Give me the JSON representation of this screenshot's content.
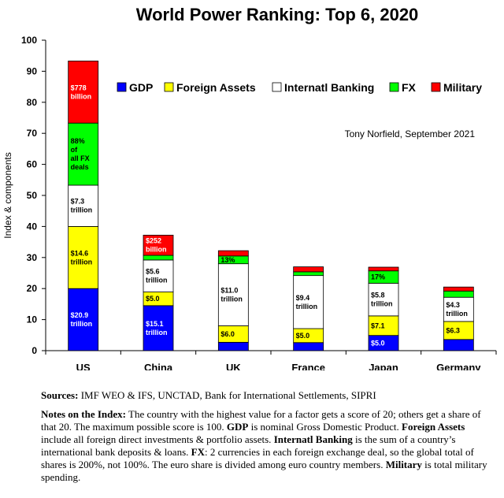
{
  "chart_data": {
    "type": "bar",
    "stacked": true,
    "title": "World Power Ranking: Top 6, 2020",
    "xlabel": "",
    "ylabel": "Index & components",
    "ylim": [
      0,
      100
    ],
    "yticks": [
      "0",
      "10",
      "20",
      "30",
      "40",
      "50",
      "60",
      "70",
      "80",
      "90",
      "100"
    ],
    "grid": false,
    "legend_position": "top-right",
    "annotation": "Tony Norfield, September 2021",
    "categories": [
      "US",
      "China",
      "UK",
      "France",
      "Japan",
      "Germany"
    ],
    "series": [
      {
        "name": "GDP",
        "color": "#0000ff",
        "values": [
          20.0,
          14.5,
          2.7,
          2.6,
          4.9,
          3.6
        ]
      },
      {
        "name": "Foreign Assets",
        "color": "#ffff00",
        "values": [
          20.0,
          4.4,
          5.3,
          4.5,
          6.3,
          5.8
        ]
      },
      {
        "name": "Internatl Banking",
        "color": "#ffffff",
        "values": [
          13.3,
          10.3,
          20.0,
          17.1,
          10.5,
          7.8
        ]
      },
      {
        "name": "FX",
        "color": "#00ff00",
        "values": [
          20.0,
          1.5,
          2.5,
          1.2,
          4.0,
          2.0
        ]
      },
      {
        "name": "Military",
        "color": "#ff0000",
        "values": [
          20.0,
          6.5,
          1.7,
          1.6,
          1.2,
          1.3
        ]
      }
    ],
    "data_labels": [
      {
        "cat": 0,
        "series": 0,
        "lines": [
          "$20.9",
          "trillion"
        ],
        "color": "#ffffff"
      },
      {
        "cat": 0,
        "series": 1,
        "lines": [
          "$14.6",
          "trillion"
        ],
        "color": "#000000"
      },
      {
        "cat": 0,
        "series": 2,
        "lines": [
          "$7.3",
          "trillion"
        ],
        "color": "#000000"
      },
      {
        "cat": 0,
        "series": 3,
        "lines": [
          "88%",
          "of",
          "all FX",
          "deals"
        ],
        "color": "#000000"
      },
      {
        "cat": 0,
        "series": 4,
        "lines": [
          "$778",
          "billion"
        ],
        "color": "#ffffff"
      },
      {
        "cat": 1,
        "series": 0,
        "lines": [
          "$15.1",
          "trillion"
        ],
        "color": "#ffffff"
      },
      {
        "cat": 1,
        "series": 1,
        "lines": [
          "$5.0"
        ],
        "color": "#000000"
      },
      {
        "cat": 1,
        "series": 2,
        "lines": [
          "$5.6",
          "trillion"
        ],
        "color": "#000000"
      },
      {
        "cat": 1,
        "series": 4,
        "lines": [
          "$252",
          "billion"
        ],
        "color": "#ffffff"
      },
      {
        "cat": 2,
        "series": 1,
        "lines": [
          "$6.0"
        ],
        "color": "#000000"
      },
      {
        "cat": 2,
        "series": 2,
        "lines": [
          "$11.0",
          "trillion"
        ],
        "color": "#000000"
      },
      {
        "cat": 2,
        "series": 3,
        "lines": [
          "13%"
        ],
        "color": "#000000"
      },
      {
        "cat": 3,
        "series": 1,
        "lines": [
          "$5.0"
        ],
        "color": "#000000"
      },
      {
        "cat": 3,
        "series": 2,
        "lines": [
          "$9.4",
          "trillion"
        ],
        "color": "#000000"
      },
      {
        "cat": 4,
        "series": 0,
        "lines": [
          "$5.0"
        ],
        "color": "#ffffff"
      },
      {
        "cat": 4,
        "series": 1,
        "lines": [
          "$7.1"
        ],
        "color": "#000000"
      },
      {
        "cat": 4,
        "series": 2,
        "lines": [
          "$5.8",
          "trillion"
        ],
        "color": "#000000"
      },
      {
        "cat": 4,
        "series": 3,
        "lines": [
          "17%"
        ],
        "color": "#000000"
      },
      {
        "cat": 5,
        "series": 1,
        "lines": [
          "$6.3"
        ],
        "color": "#000000"
      },
      {
        "cat": 5,
        "series": 2,
        "lines": [
          "$4.3",
          "trillion"
        ],
        "color": "#000000"
      }
    ]
  },
  "notes": {
    "sources_label": "Sources:",
    "sources_text": " IMF WEO & IFS, UNCTAD, Bank for International Settlements, SIPRI",
    "notes_label": "Notes on the Index:",
    "notes_text_1": " The country with the highest value for a factor gets a score of 20; others get a share of that 20. The maximum possible score is 100. ",
    "gdp_label": "GDP",
    "gdp_text": " is nominal Gross Domestic Product. ",
    "fa_label": "Foreign Assets",
    "fa_text": " include all foreign direct investments & portfolio assets. ",
    "ib_label": "Internatl Banking",
    "ib_text": " is the sum of a country’s international bank deposits & loans. ",
    "fx_label": "FX",
    "fx_text": ": 2 currencies in each foreign exchange deal, so the global total of shares is 200%, not 100%. The euro share is divided among euro country members. ",
    "mil_label": "Military",
    "mil_text": " is total military spending."
  }
}
